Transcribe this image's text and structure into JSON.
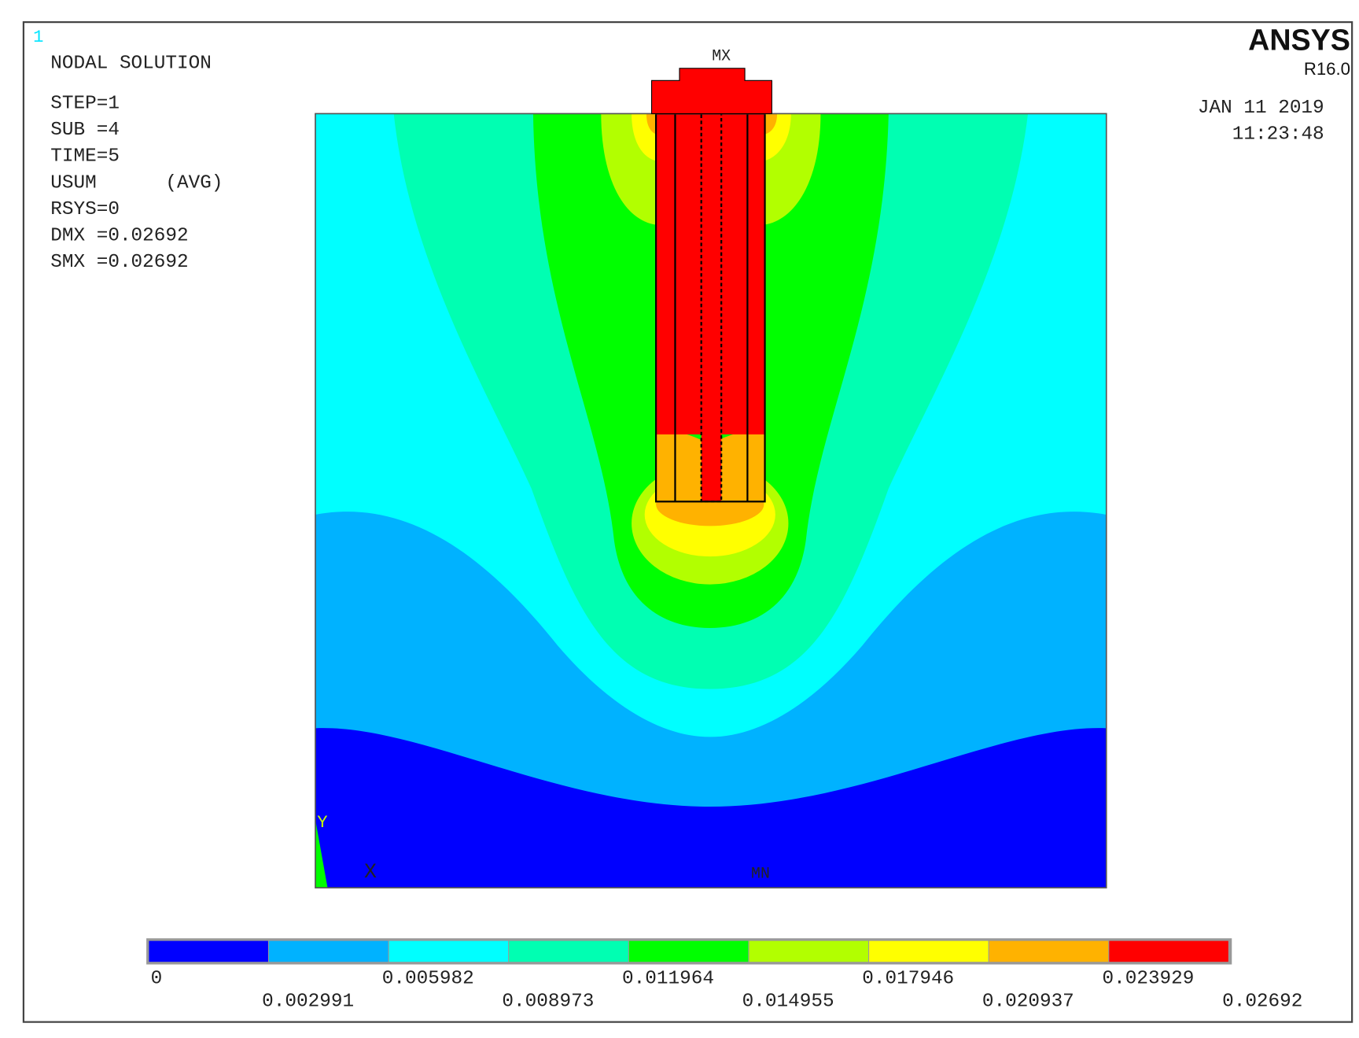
{
  "window_number": "1",
  "info": {
    "title": "NODAL SOLUTION",
    "lines": [
      "STEP=1",
      "SUB =4",
      "TIME=5",
      "USUM      (AVG)",
      "RSYS=0",
      "DMX =0.02692",
      "SMX =0.02692"
    ]
  },
  "brand": {
    "name": "ANSYS",
    "version": "R16.0"
  },
  "date": "JAN 11 2019",
  "time": "11:23:48",
  "markers": {
    "max": "MX",
    "min": "MN"
  },
  "axes": {
    "y": "Y",
    "x": "X"
  },
  "legend": {
    "colors": [
      "#0000FF",
      "#00B2FF",
      "#00FFFF",
      "#00FFB2",
      "#00FF00",
      "#B2FF00",
      "#FFFF00",
      "#FFB200",
      "#FF0000"
    ],
    "levels": [
      0,
      0.002991,
      0.005982,
      0.008973,
      0.011964,
      0.014955,
      0.017946,
      0.020937,
      0.023929,
      0.02692
    ]
  }
}
